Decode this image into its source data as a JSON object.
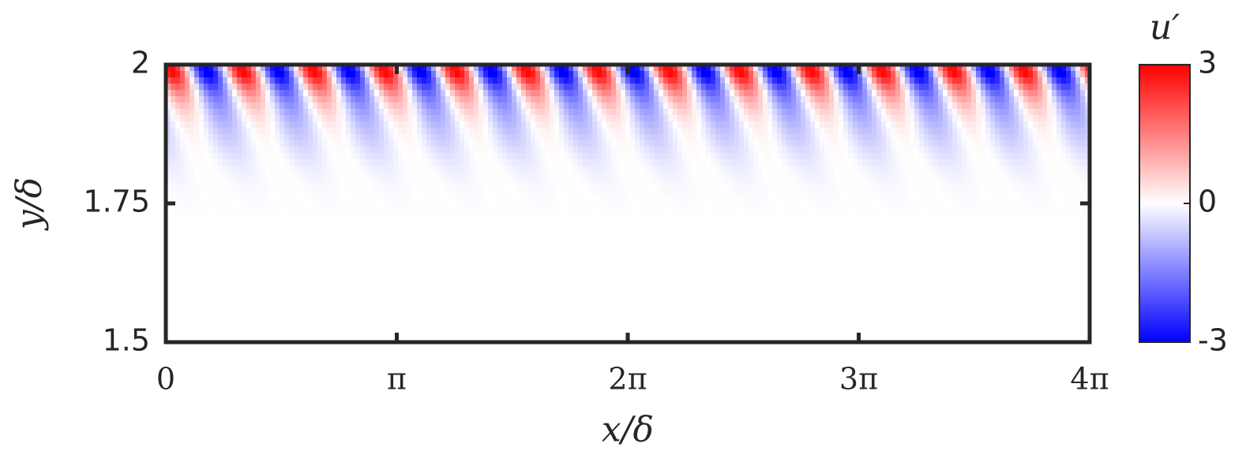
{
  "chart_data": {
    "type": "heatmap",
    "xlabel": "x/δ",
    "ylabel": "y/δ",
    "colorbar_label": "u′",
    "xlim": [
      0,
      12.566370614359172
    ],
    "xticks": [
      {
        "value": 0,
        "label": "0"
      },
      {
        "value": 3.141592653589793,
        "label": "π"
      },
      {
        "value": 6.283185307179586,
        "label": "2π"
      },
      {
        "value": 9.42477796076938,
        "label": "3π"
      },
      {
        "value": 12.566370614359172,
        "label": "4π"
      }
    ],
    "ylim": [
      1.5,
      2
    ],
    "yticks": [
      1.5,
      1.75,
      2
    ],
    "clim": [
      -3,
      3
    ],
    "cticks": [
      -3,
      0,
      3
    ],
    "colormap": [
      "#0000ff",
      "#ffffff",
      "#ff0000"
    ]
  }
}
